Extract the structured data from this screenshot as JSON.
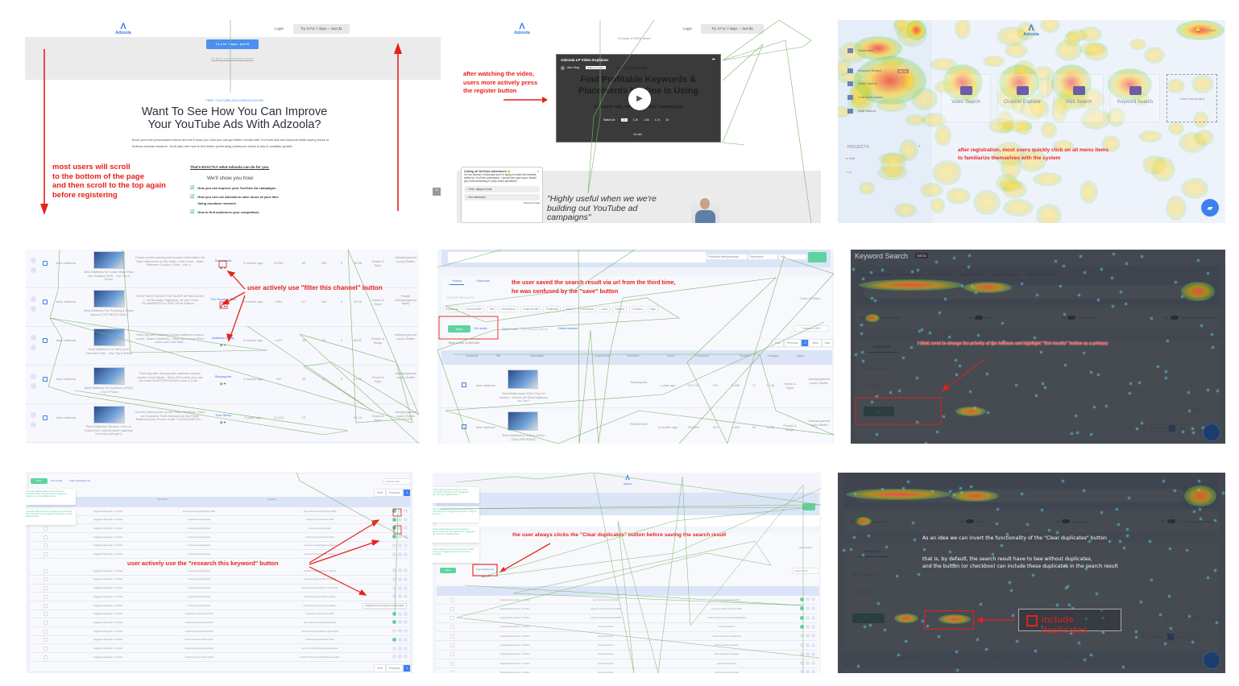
{
  "colors": {
    "accent": "#2f7ce6",
    "annotation": "#e8201a",
    "green": "#5fd3a1",
    "path": "#5a9a3c"
  },
  "p1": {
    "logo": "Adzoola",
    "login": "Login",
    "try_top": "Try It For 7 days – Just $1",
    "try_cta": "Try it for 7 days - just $1",
    "demo_link": "Or book a personalized demo",
    "eyebrow": "FREE YOUTUBE ADS CONSULTATION",
    "heading1": "Want To See How You Can Improve",
    "heading2": "Your YouTube Ads With Adzoola?",
    "para": "Book your free personalized demo and we'll show you how you can get better results with YouTube Ads and Adzoola while saving hours of tedious manual research. You'll also see how to find better performing audiences which is key to scalable growth.",
    "exactly": "That's EXACTLY what Adzoola can do for you.",
    "show": "We'll show you how:",
    "list": [
      "How you can improve your YouTube Ad campaigns",
      "How you can use Adzoola to save hours of your time doing mundane research",
      "How to find audiences your competitors"
    ],
    "annotation": [
      "most users will scroll",
      "to the bottom of the page",
      "and then scroll to the top again",
      "before registering"
    ]
  },
  "p2": {
    "logo": "Adzoola",
    "login": "Login",
    "try_top": "Try It For 7 days – Just $1",
    "sub": "Or book a FREE demo",
    "video_title": "Adzoola LP Video Explainer",
    "author": "Alex King",
    "watch_loom": "Watch on Loom",
    "video_kicker": "For YouTube Ads",
    "video_h1": "Find Profitable Keywords &",
    "video_h2": "Placements No One Is Using",
    "video_sub": "(Cheaper ads, more profitable campaigns)",
    "watch_at": "Watch At:",
    "speeds": [
      "1x",
      "1.2x",
      "1.5x",
      "1.7x",
      "2x"
    ],
    "duration": "10 min",
    "annotation": [
      "after watching the video,",
      "users more actively press",
      "the register button"
    ],
    "survey_title": "Calling all YouTube advertisers 👋",
    "survey_body": "I'm the founder of Adzoola and I'm trying to make this website better for YouTube advertisers. I would love your input. Would you mind answering 5 (very short) questions?",
    "survey_options": [
      "Sure, happy to help",
      "Not interested"
    ],
    "survey_powered": "Powered by hotjar",
    "quote": [
      "\"Highly useful when we we're",
      "building out YouTube ad",
      "campaigns\""
    ]
  },
  "p3": {
    "logo": "Adzoola",
    "user": "Studio",
    "sidebar": [
      "Dashboard",
      "Keyword Search",
      "Video Search",
      "Channel Explorer",
      "Web Search"
    ],
    "beta": "BETA",
    "projects_label": "PROJECTS",
    "projects": [
      "One",
      "ui"
    ],
    "cards": [
      "Video Search",
      "Channel Explorer",
      "Web Search",
      "Keyword Search"
    ],
    "add_project": "+Add new project",
    "annotation": [
      "after registration, most users quickly click on all menu items",
      "to familiarize themselves with the system"
    ]
  },
  "p4": {
    "annotation": "user actively use \"filter this channel\" button",
    "rows": [
      {
        "kw": "best mattress",
        "title": "Best Mattress for Lower Back Pain and Sciatica 2020 - Our Top 6 Picks!",
        "desc": "Check current pricing and coupon information for that mattresses in this video: Helix Luxe - Helix Mattress Coupon Code - Use c...",
        "channel": "Sleepopolis",
        "published": "9 months ago",
        "views": "13,387",
        "comments": "60",
        "likes": "205",
        "dislikes": "5",
        "duration": "06:38",
        "category": "Howto & Style",
        "topic": "Lifestyle(parent topic) Health"
      },
      {
        "kw": "best mattress",
        "title": "Best Mattress For Snoring & Sleep Apnea (TOP BEDS 2020)",
        "desc": "SHOP BEST BEDS FOR SLEEP APNEA NOW ↓↓↓ ➡ Brooklyn Signature: ➡ Use Code SLUMBER25 For 25% Off ➡ Saatva: ...",
        "channel": "The Slumber Yard",
        "published": "9 months ago",
        "views": "1504",
        "comments": "117",
        "likes": "161",
        "dislikes": "0",
        "duration": "09:25",
        "category": "Howto & Style",
        "topic": "Health Lifestyle(parent topic)"
      },
      {
        "kw": "best mattress",
        "title": "Best Mattress For Neck And Shoulder Pain - Our Top 6 Beds!",
        "desc": "Save big with Mattress Clarity mattress coupon codes: Saatva Mattress - Click link to save $100 Loom and Leaf Matt...",
        "channel": "Mattress Clarity",
        "published": "4 months ago",
        "views": "1,877",
        "comments": "34",
        "likes": "63",
        "dislikes": "0",
        "duration": "08:41",
        "category": "People & Blogs",
        "topic": "Lifestyle(parent topic) Health"
      },
      {
        "kw": "best mattress",
        "title": "Best Mattress for Scoliosis (2020) - Top 5 Picks!",
        "desc": "Save big with Sleepopolis mattress coupon codes: Level Sleep - Save 20% when you use the code SLEEPOPOLIS20 Loom & Leaf ...",
        "channel": "Sleepopolis",
        "published": "3 months ago",
        "views": "767",
        "comments": "49",
        "likes": "57",
        "dislikes": "2",
        "duration": "07:03",
        "category": "Howto & Style",
        "topic": "Lifestyle(parent topic) Health"
      },
      {
        "kw": "best mattress",
        "title": "Plank Mattress Review | Firm or Extra Firm? (2019) (best mattress for heavy people?)",
        "desc": "Get the lowest price on the Plank Mattress: Claim an Exclusive Tuck Discount on the Plank Mattress (Use Promo Code: TUCKSLEEP20) ...",
        "channel": "Tuck Sleep",
        "published": "2 years ago",
        "views": "12,101",
        "comments": "13",
        "likes": "",
        "dislikes": "",
        "duration": "06:13",
        "category": "Howto & Style",
        "topic": "Lifestyle(parent topic) Health"
      }
    ]
  },
  "p5": {
    "published_after": "Published after(optional)",
    "relevance": "Relevance",
    "count": "100",
    "tabs": [
      "Videos",
      "Channels"
    ],
    "filter_results": "FILTER RESULTS",
    "clear_filters": "Clear all filters",
    "filters": [
      "Keywords",
      "Channel filter",
      "Title",
      "Description",
      "Channel title",
      "Published",
      "Views",
      "Comments",
      "Likes",
      "Dislikes",
      "Duration",
      "Tags"
    ],
    "save": "Save",
    "get_results": "Get results",
    "send": "Send to list",
    "find_related": "Find related videos",
    "delete_selected": "Delete selected",
    "columns": "Columns 13/13",
    "total_views": "Total views: 5,680,884",
    "pager": [
      "First",
      "Previous",
      "1",
      "Next",
      "Last"
    ],
    "headers": [
      "Keywords",
      "Title",
      "Description",
      "Channel title",
      "Published",
      "Views",
      "Comments",
      "Duration",
      "Category",
      "Topics"
    ],
    "rows": [
      {
        "kw": "best mattress",
        "title": "Best Mattresses 2020 (Top 10 Beds!) - What's the Best Mattress for You?",
        "channel": "Sleepopolis",
        "published": "a year ago",
        "views": "247,178",
        "comments": "370",
        "likes": "2,095",
        "dislikes": "71",
        "duration": "11:38",
        "category": "Howto & Style",
        "topic": "Lifestyle(parent topic) Health"
      },
      {
        "kw": "best mattress",
        "title": "Best Mattress In A Box Online (2020 REVIEWS)",
        "channel": "RIZKNOWS",
        "published": "6 months ago",
        "views": "100,969",
        "comments": "222",
        "likes": "4,463",
        "dislikes": "54",
        "duration": "11:35",
        "category": "People & Blogs",
        "topic": "Lifestyle(parent topic) Health"
      }
    ],
    "annotation": [
      "the user saved the search result via url from the third time,",
      "he was confused by the \"save\" button"
    ]
  },
  "p6": {
    "title": "Keyword Search",
    "beta": "BETA",
    "tabs": [
      "Suggested keywords",
      "Related keywords",
      "Search keywords",
      "Keywords by topic",
      "Keywords by category",
      "Keywords for Domains"
    ],
    "toggles": [
      "Research mode",
      "Deep",
      "Alphabetical",
      "Combined keyword search"
    ],
    "off": "Off",
    "keywords_tab": "Keywords",
    "filter_results": "FILTER RESULTS",
    "your_search": "Your search",
    "save": "Save",
    "columns": "Columns 5/5",
    "pager": [
      "First",
      "Previous",
      "1",
      "Next"
    ],
    "annotation": "I think need to change the priority of the buttons and highlight \"Get results\" button as a primary"
  },
  "p7": {
    "save": "Save",
    "get_results": "Get results",
    "clear_duplicates": "Clear duplicates (0)",
    "columns": "Columns 5/5",
    "headers": [
      "Your Search",
      "Keywords"
    ],
    "rows": [
      [
        "Suggested keywords - YouTube",
        "best investment opportunities 2020",
        "best investment opportunities 2020"
      ],
      [
        "Suggested keywords - YouTube",
        "investment opportunities",
        "investment opportunities 2020"
      ],
      [
        "Suggested keywords - YouTube",
        "investment opportunities",
        "investment opportunities"
      ],
      [
        "Suggested keywords - YouTube",
        "investment opportunities",
        "investment opportunities portal"
      ],
      [
        "Suggested keywords - YouTube",
        "investment opportunities",
        "investment opportunities in ghana"
      ],
      [
        "Suggested keywords - YouTube",
        "investment opportunities",
        "investment opportunities in africa"
      ],
      [
        "Suggested keywords - YouTube",
        "investment opportunities",
        "investment opportunities in zambia"
      ],
      [
        "Suggested keywords - YouTube",
        "investment opportunities",
        "investment opportunities in rwanda"
      ],
      [
        "Suggested keywords - YouTube",
        "investment opportunities",
        "investment opportunities in south africa"
      ],
      [
        "Suggested keywords - YouTube",
        "investment opportunities",
        "investment opportunities in nigeria"
      ],
      [
        "Suggested keywords - YouTube",
        "investment opportunities",
        "investment opportunities in pakistan"
      ],
      [
        "Suggested keywords - YouTube",
        "investment opportunities 2020",
        "investment opportunities 2020"
      ],
      [
        "Suggested keywords - YouTube",
        "investment opportunities 2020",
        "best investment opportunities 2020"
      ],
      [
        "Suggested keywords - YouTube",
        "investment opportunities 2020",
        "investment opportunities in nigeria 2020"
      ],
      [
        "Suggested keywords - YouTube",
        "investment opportunities portal",
        "investment opportunities portal"
      ],
      [
        "Suggested keywords - YouTube",
        "investment opportunities portal",
        "portal 1 investment opportunities texas"
      ],
      [
        "Suggested keywords - YouTube",
        "investment opportunities portal",
        "portal 8 investment opportunities execution"
      ]
    ],
    "toasts": [
      "Successfully added keyword \"best investment opportunities 2020\" with search type \"Suggested keywords\" and got 1 additional items",
      "Successfully added keyword \"investment opportunities portal\" with search type \"Suggested keywords\" and got 1 additional items"
    ],
    "tooltip": "Suggestions for this keyword already added",
    "pager": [
      "First",
      "Previous",
      "1",
      "Next",
      "Last"
    ],
    "annotation": "user actively use the \"research this keyword\" button"
  },
  "p8": {
    "logo": "Adzoola",
    "save": "Save",
    "clear_duplicates": "Clear duplicates (0)",
    "columns": "Columns 5/5",
    "clear_filters": "Clear all filters",
    "toasts": [
      "Successfully added keyword \"long term stock investment 2020\" with search type \"Suggested keywords\" and got 1 additional items",
      "Successfully added keyword \"best stock investment 2020\" with search type \"Suggested keywords\" and got 1 additional items",
      "Successfully added keyword \"stock investment strategies for beginners\" with search type \"Suggested keywords\" and got 1 additional items",
      "Successfully added keyword \"stock investment 2020\" with search type \"Suggested keywords\" and got 1 additional items"
    ],
    "rows": [
      [
        "Suggested keywords - YouTube",
        "best stock investment 2020",
        "best stock investment 2020"
      ],
      [
        "Suggested keywords - YouTube",
        "long term stock investment 2020",
        "long term stock investment 2020"
      ],
      [
        "Suggested keywords - YouTube",
        "long term stock investment 2020",
        "stock for long term investment 2020 india"
      ],
      [
        "Suggested keywords - YouTube",
        "stock investment",
        "stock investment"
      ],
      [
        "Suggested keywords - YouTube",
        "stock investment",
        "stock investment for beginners"
      ],
      [
        "Suggested keywords - YouTube",
        "stock investment",
        "stock investment analysis"
      ],
      [
        "Suggested keywords - YouTube",
        "stock investment",
        "stock investment strategies"
      ],
      [
        "Suggested keywords - YouTube",
        "stock investment",
        "stock investment tips"
      ],
      [
        "Suggested keywords - YouTube",
        "stock investment",
        "stock investment portfolio"
      ]
    ],
    "annotation": "the user always clicks the \"Clear duplicates\" button before saving the search result"
  },
  "p9": {
    "toggles": [
      "Research mode",
      "Deep",
      "Alphabetical",
      "Combined keyword search"
    ],
    "off": "Off",
    "keywords_tab": "Keywords",
    "filter_results": "FILTER RESULTS",
    "your_search": "Your search",
    "save": "Save",
    "columns": "Columns 5/5",
    "pager": [
      "First",
      "Previous",
      "1",
      "Next",
      "Last"
    ],
    "headers": [
      "Search Type",
      "Your Search",
      "Keywords"
    ],
    "idea1": "As an idea we can invert the functionality of the \"Clear duplicates\" button",
    "idea2": "that is, by default, the search result have to bee without duplicates,",
    "idea3": "and the button (or checkbox) can include these duplicates in the search result",
    "include_duplicates": "include duplicates"
  }
}
